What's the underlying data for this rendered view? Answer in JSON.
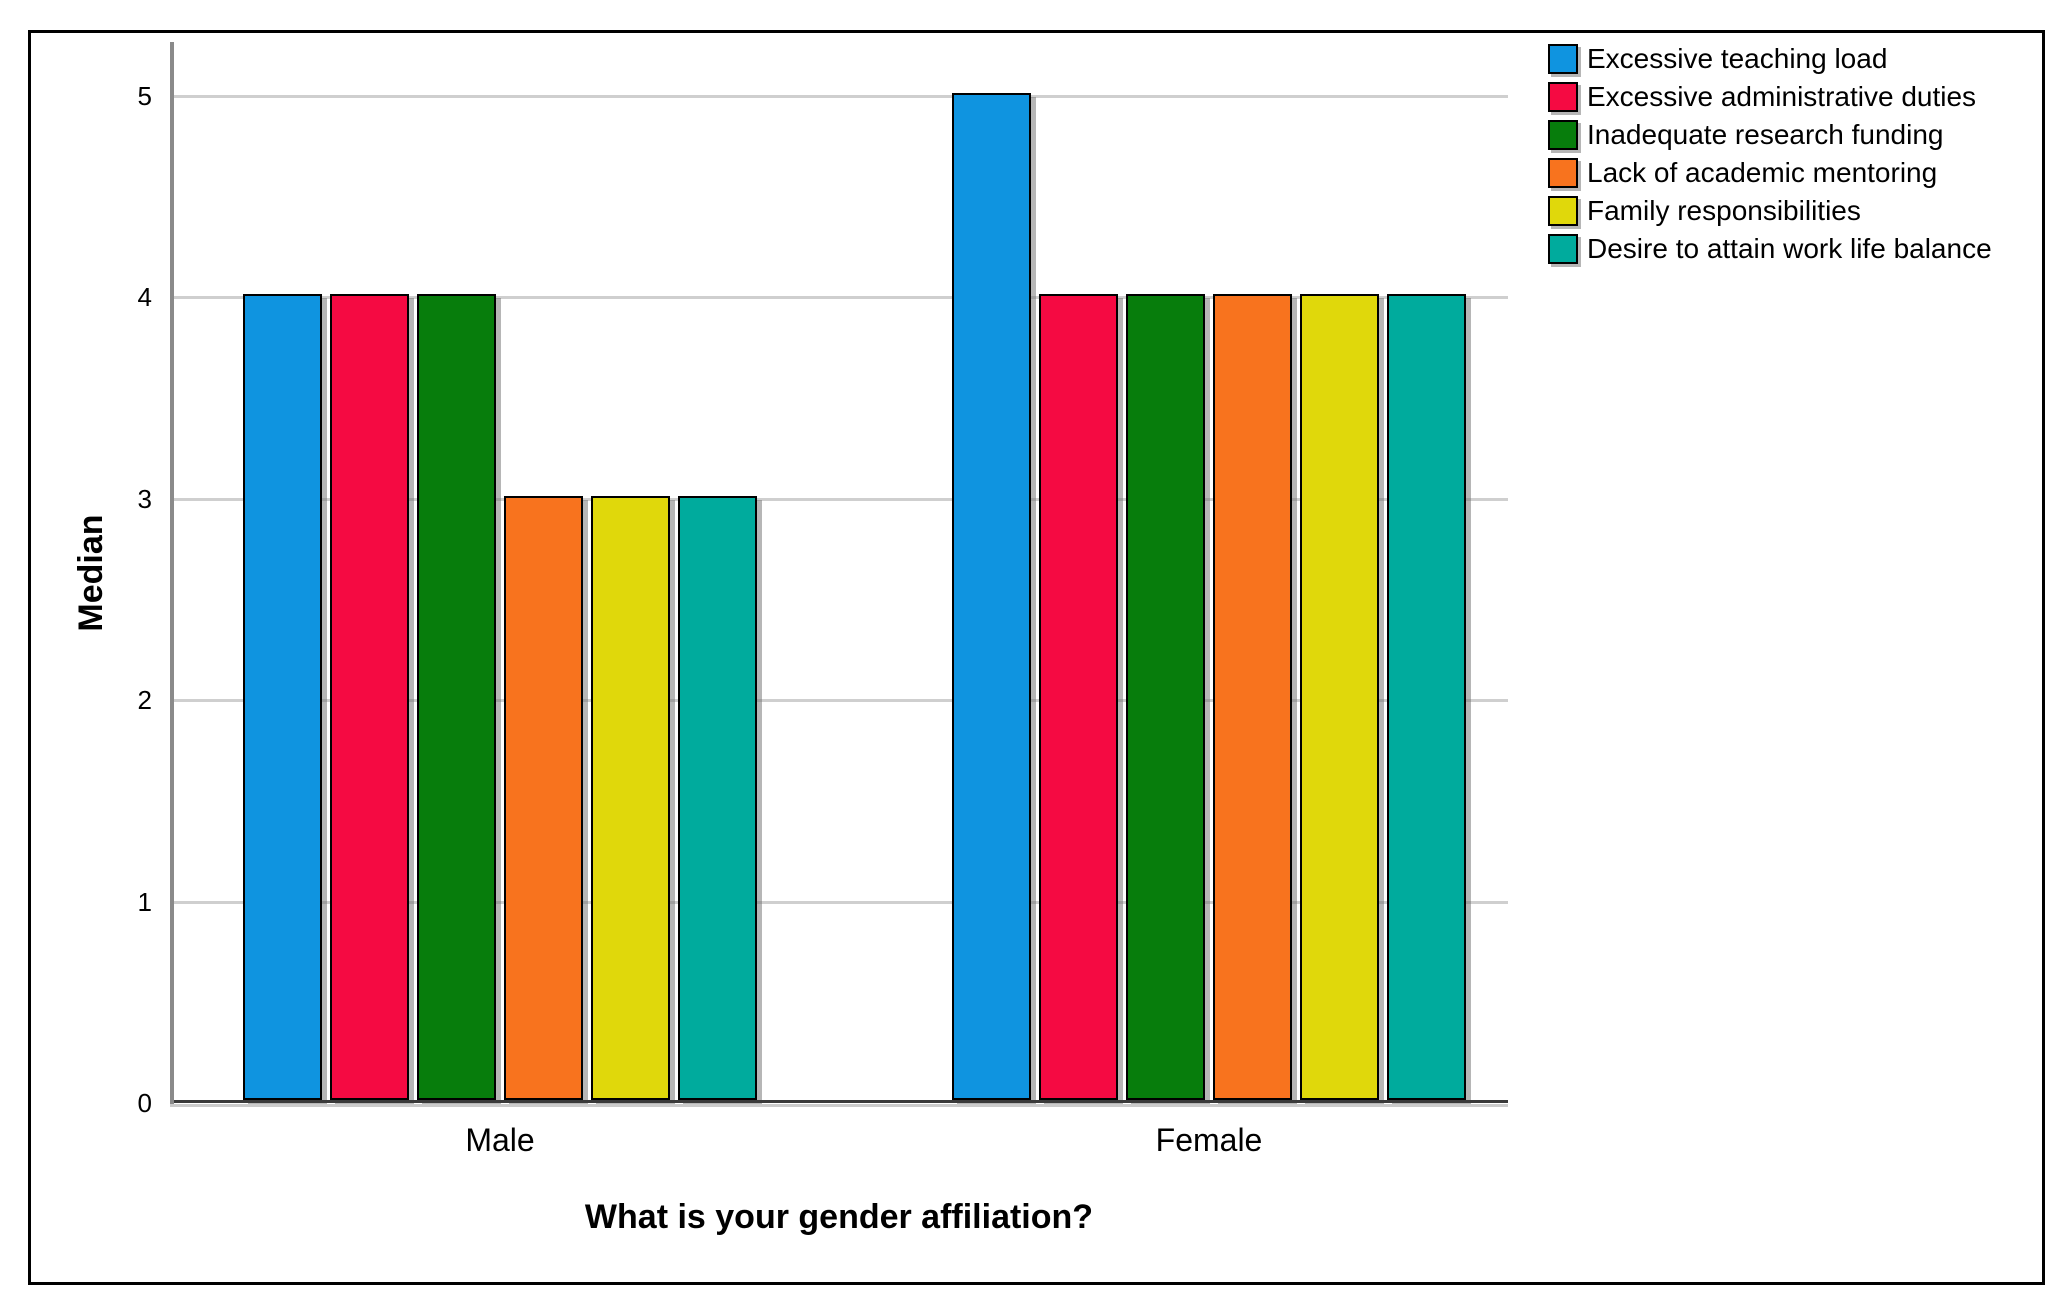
{
  "chart_data": {
    "type": "bar",
    "title": "",
    "xlabel": "What is your gender affiliation?",
    "ylabel": "Median",
    "categories": [
      "Male",
      "Female"
    ],
    "series": [
      {
        "name": "Excessive teaching load",
        "color": "#0f94e0",
        "values": [
          4,
          5
        ]
      },
      {
        "name": "Excessive administrative duties",
        "color": "#f50a42",
        "values": [
          4,
          4
        ]
      },
      {
        "name": "Inadequate research funding",
        "color": "#077d0c",
        "values": [
          4,
          4
        ]
      },
      {
        "name": "Lack of academic mentoring",
        "color": "#f8731e",
        "values": [
          3,
          4
        ]
      },
      {
        "name": "Family responsibilities",
        "color": "#e0d80b",
        "values": [
          3,
          4
        ]
      },
      {
        "name": "Desire to attain work life balance",
        "color": "#00ab9d",
        "values": [
          3,
          4
        ]
      }
    ],
    "yticks": [
      0,
      1,
      2,
      3,
      4,
      5
    ],
    "ylim": [
      0,
      5.26
    ],
    "grid": "horizontal",
    "legend_position": "top-right",
    "axis_colors": {
      "gridline": "#cfcfcf",
      "y_axis": "#8a8a8a",
      "x_axis": "#3a3a3a",
      "frame": "#000000"
    }
  }
}
